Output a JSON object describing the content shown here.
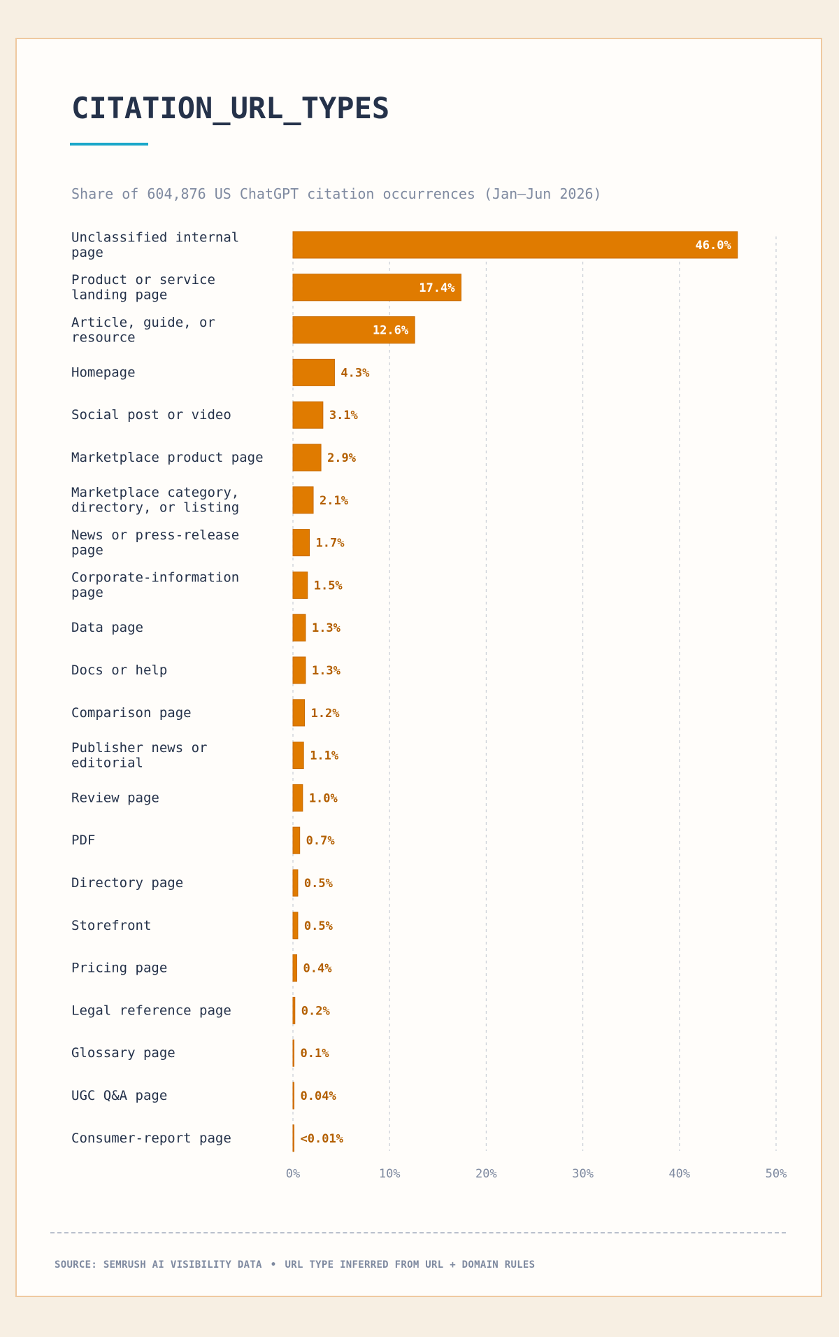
{
  "chart_data": {
    "type": "bar",
    "orientation": "horizontal",
    "title": "CITATION_URL_TYPES",
    "subtitle": "Share of 604,876 US ChatGPT citation occurrences (Jan–Jun 2026)",
    "categories": [
      "Unclassified internal page",
      "Product or service landing page",
      "Article, guide, or resource",
      "Homepage",
      "Social post or video",
      "Marketplace product page",
      "Marketplace category, directory, or listing",
      "News or press-release page",
      "Corporate-information page",
      "Data page",
      "Docs or help",
      "Comparison page",
      "Publisher news or editorial",
      "Review page",
      "PDF",
      "Directory page",
      "Storefront",
      "Pricing page",
      "Legal reference page",
      "Glossary page",
      "UGC Q&A page",
      "Consumer-report page"
    ],
    "category_lines": [
      [
        "Unclassified internal",
        "page"
      ],
      [
        "Product or service",
        "landing page"
      ],
      [
        "Article, guide, or",
        "resource"
      ],
      [
        "Homepage"
      ],
      [
        "Social post or video"
      ],
      [
        "Marketplace product page"
      ],
      [
        "Marketplace category,",
        "directory, or listing"
      ],
      [
        "News or press-release",
        "page"
      ],
      [
        "Corporate-information",
        "page"
      ],
      [
        "Data page"
      ],
      [
        "Docs or help"
      ],
      [
        "Comparison page"
      ],
      [
        "Publisher news or",
        "editorial"
      ],
      [
        "Review page"
      ],
      [
        "PDF"
      ],
      [
        "Directory page"
      ],
      [
        "Storefront"
      ],
      [
        "Pricing page"
      ],
      [
        "Legal reference page"
      ],
      [
        "Glossary page"
      ],
      [
        "UGC Q&A page"
      ],
      [
        "Consumer-report page"
      ]
    ],
    "values": [
      46.0,
      17.4,
      12.6,
      4.3,
      3.1,
      2.9,
      2.1,
      1.7,
      1.5,
      1.3,
      1.3,
      1.2,
      1.1,
      1.0,
      0.7,
      0.5,
      0.5,
      0.4,
      0.2,
      0.1,
      0.04,
      0.01
    ],
    "value_labels": [
      "46.0%",
      "17.4%",
      "12.6%",
      "4.3%",
      "3.1%",
      "2.9%",
      "2.1%",
      "1.7%",
      "1.5%",
      "1.3%",
      "1.3%",
      "1.2%",
      "1.1%",
      "1.0%",
      "0.7%",
      "0.5%",
      "0.5%",
      "0.4%",
      "0.2%",
      "0.1%",
      "0.04%",
      "<0.01%"
    ],
    "xlim": [
      0,
      50
    ],
    "xticks": [
      0,
      10,
      20,
      30,
      40,
      50
    ],
    "xtick_labels": [
      "0%",
      "10%",
      "20%",
      "30%",
      "40%",
      "50%"
    ],
    "grid": "vertical dashed",
    "colors": {
      "bar": "#e07b00",
      "bar_border": "#c86a00",
      "label_inside": "#ffffff",
      "label_outside": "#b35f00",
      "category_text": "#25324a",
      "tick_text": "#7f8aa0",
      "grid": "#c9ced6"
    }
  },
  "footer": {
    "source": "SOURCE: SEMRUSH AI VISIBILITY DATA",
    "separator": "•",
    "note": "URL TYPE INFERRED FROM URL + DOMAIN RULES"
  },
  "colors": {
    "background": "#f7efe3",
    "card": "#fffdfa",
    "card_border": "#efc9a0",
    "accent": "#1aa7c9",
    "title": "#25324a"
  }
}
